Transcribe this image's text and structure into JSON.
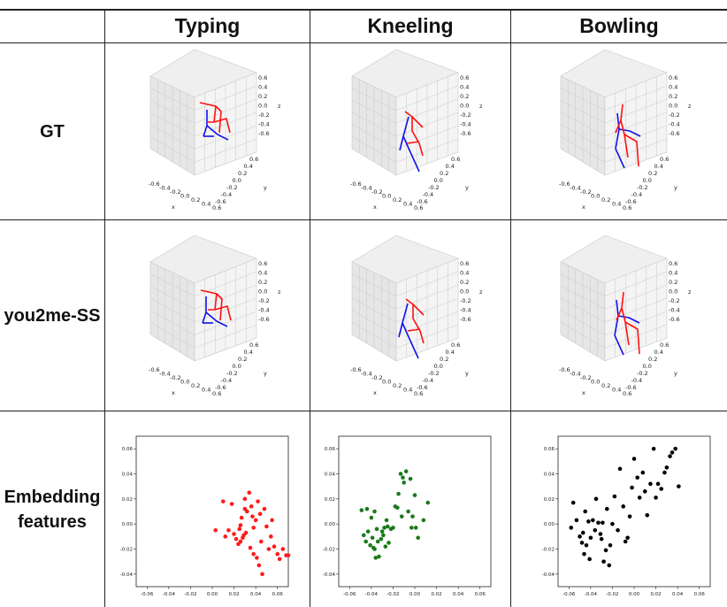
{
  "columns": [
    "Typing",
    "Kneeling",
    "Bowling"
  ],
  "rows": [
    "GT",
    "you2me-SS",
    "Embedding features"
  ],
  "pose_axes": {
    "x_ticks": [
      "-0.6",
      "-0.4",
      "-0.2",
      "0.0",
      "0.2",
      "0.4",
      "0.6"
    ],
    "y_ticks": [
      "0.6",
      "0.4",
      "0.2",
      "0.0",
      "-0.2",
      "-0.4",
      "-0.6"
    ],
    "z_ticks": [
      "0.6",
      "0.4",
      "0.2",
      "0.0",
      "-0.2",
      "-0.4",
      "-0.6"
    ],
    "x_label": "x",
    "y_label": "y",
    "z_label": "z",
    "colors": {
      "red": "#ff1111",
      "blue": "#1111ee"
    }
  },
  "chart_data": [
    {
      "type": "scatter",
      "panel": "Typing",
      "color": "#ff1a1a",
      "xlim": [
        -0.07,
        0.07
      ],
      "ylim": [
        -0.05,
        0.07
      ],
      "xticks": [
        -0.06,
        -0.04,
        -0.02,
        0.0,
        0.02,
        0.04,
        0.06
      ],
      "yticks": [
        -0.04,
        -0.02,
        0.0,
        0.02,
        0.04,
        0.06
      ],
      "x": [
        0.003,
        0.01,
        0.012,
        0.015,
        0.018,
        0.02,
        0.022,
        0.024,
        0.025,
        0.026,
        0.027,
        0.028,
        0.029,
        0.03,
        0.031,
        0.032,
        0.034,
        0.035,
        0.036,
        0.037,
        0.038,
        0.04,
        0.041,
        0.042,
        0.043,
        0.044,
        0.045,
        0.046,
        0.048,
        0.05,
        0.052,
        0.054,
        0.055,
        0.057,
        0.06,
        0.062,
        0.065,
        0.068,
        0.07,
        0.03,
        0.038,
        0.026
      ],
      "y": [
        -0.005,
        0.018,
        -0.01,
        -0.005,
        0.016,
        -0.008,
        -0.012,
        -0.016,
        -0.004,
        -0.014,
        0.005,
        -0.011,
        -0.009,
        0.012,
        -0.007,
        0.01,
        0.025,
        -0.019,
        0.014,
        0.006,
        -0.024,
        0.003,
        -0.027,
        0.018,
        -0.033,
        0.008,
        -0.014,
        -0.04,
        0.012,
        -0.002,
        -0.02,
        -0.01,
        0.003,
        -0.018,
        -0.024,
        -0.028,
        -0.02,
        -0.025,
        -0.025,
        0.02,
        -0.003,
        -0.001
      ]
    },
    {
      "type": "scatter",
      "panel": "Kneeling",
      "color": "#1a7a1a",
      "xlim": [
        -0.07,
        0.07
      ],
      "ylim": [
        -0.05,
        0.07
      ],
      "xticks": [
        -0.06,
        -0.04,
        -0.02,
        0.0,
        0.02,
        0.04,
        0.06
      ],
      "yticks": [
        -0.04,
        -0.02,
        0.0,
        0.02,
        0.04,
        0.06
      ],
      "x": [
        -0.049,
        -0.047,
        -0.045,
        -0.044,
        -0.043,
        -0.041,
        -0.04,
        -0.039,
        -0.038,
        -0.037,
        -0.036,
        -0.035,
        -0.034,
        -0.033,
        -0.031,
        -0.03,
        -0.029,
        -0.028,
        -0.026,
        -0.025,
        -0.024,
        -0.022,
        -0.02,
        -0.018,
        -0.016,
        -0.015,
        -0.013,
        -0.012,
        -0.011,
        -0.01,
        -0.008,
        -0.006,
        -0.004,
        -0.003,
        -0.002,
        0.0,
        0.001,
        0.003,
        0.008,
        0.012,
        -0.027,
        -0.037
      ],
      "y": [
        0.011,
        -0.009,
        -0.014,
        0.012,
        -0.006,
        -0.017,
        0.005,
        -0.011,
        -0.019,
        0.01,
        -0.027,
        -0.004,
        -0.014,
        -0.026,
        -0.012,
        -0.006,
        -0.009,
        -0.003,
        0.003,
        -0.002,
        -0.015,
        -0.004,
        -0.003,
        0.014,
        0.013,
        0.024,
        0.04,
        0.006,
        0.037,
        0.033,
        0.042,
        0.01,
        0.036,
        -0.003,
        0.006,
        0.023,
        -0.003,
        -0.011,
        0.003,
        0.017,
        -0.018,
        -0.02
      ]
    },
    {
      "type": "scatter",
      "panel": "Bowling",
      "color": "#000000",
      "xlim": [
        -0.07,
        0.07
      ],
      "ylim": [
        -0.05,
        0.07
      ],
      "xticks": [
        -0.06,
        -0.04,
        -0.02,
        0.0,
        0.02,
        0.04,
        0.06
      ],
      "yticks": [
        -0.04,
        -0.02,
        0.0,
        0.02,
        0.04,
        0.06
      ],
      "x": [
        -0.058,
        -0.056,
        -0.053,
        -0.05,
        -0.048,
        -0.047,
        -0.046,
        -0.045,
        -0.044,
        -0.042,
        -0.041,
        -0.04,
        -0.038,
        -0.036,
        -0.035,
        -0.033,
        -0.031,
        -0.03,
        -0.029,
        -0.028,
        -0.026,
        -0.025,
        -0.023,
        -0.022,
        -0.02,
        -0.018,
        -0.015,
        -0.013,
        -0.01,
        -0.008,
        -0.006,
        -0.004,
        -0.002,
        0.0,
        0.003,
        0.005,
        0.008,
        0.01,
        0.012,
        0.015,
        0.018,
        0.02,
        0.022,
        0.025,
        0.028,
        0.03,
        0.033,
        0.035,
        0.038,
        0.041
      ],
      "y": [
        -0.003,
        0.017,
        0.003,
        -0.01,
        -0.015,
        -0.007,
        -0.024,
        0.01,
        -0.017,
        0.002,
        -0.028,
        -0.011,
        0.003,
        -0.005,
        0.02,
        0.001,
        -0.008,
        -0.012,
        0.001,
        -0.03,
        -0.021,
        0.012,
        -0.033,
        -0.017,
        0.0,
        0.022,
        -0.005,
        0.044,
        0.014,
        -0.014,
        -0.011,
        0.006,
        0.029,
        0.052,
        0.037,
        0.021,
        0.041,
        0.026,
        0.007,
        0.032,
        0.06,
        0.021,
        0.032,
        0.028,
        0.041,
        0.045,
        0.054,
        0.057,
        0.06,
        0.03
      ]
    }
  ]
}
